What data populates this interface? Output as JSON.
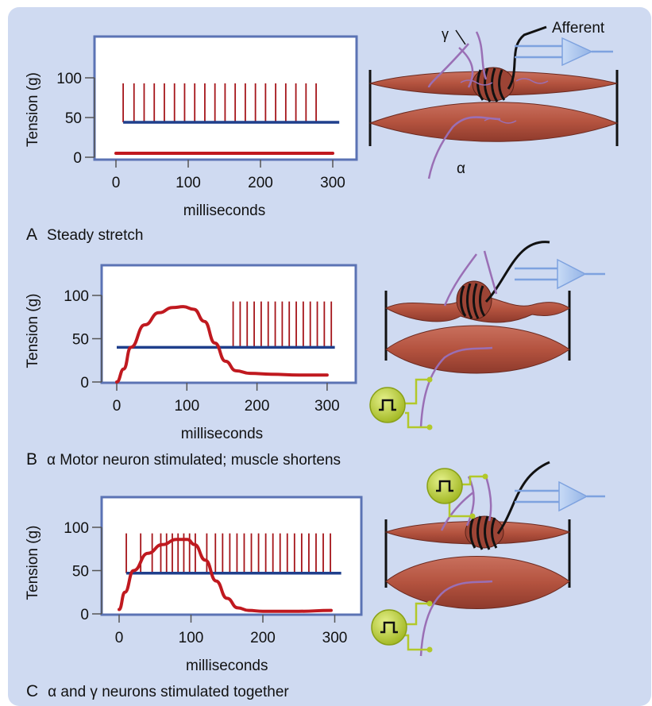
{
  "colors": {
    "background": "#cfdaf1",
    "plot_border": "#5b73b4",
    "tension_trace": "#c0191f",
    "spike": "#a5151a",
    "baseline": "#1f3f8c",
    "muscle": "#b7594a",
    "gamma_fiber": "#9a6fb5",
    "stimulator": "#b2c82a",
    "amplifier": "#a9c4ee"
  },
  "labels": {
    "gamma": "γ",
    "alpha": "α",
    "afferent": "Afferent",
    "ylabel": "Tension (g)",
    "xlabel": "milliseconds"
  },
  "captions": [
    {
      "letter": "A",
      "text": "Steady stretch"
    },
    {
      "letter": "B",
      "text": "α Motor neuron stimulated; muscle shortens"
    },
    {
      "letter": "C",
      "text": "α and γ neurons stimulated together"
    }
  ],
  "chart_data": [
    {
      "type": "line",
      "panel": "A",
      "xlabel": "milliseconds",
      "ylabel": "Tension (g)",
      "x_ticks": [
        0,
        100,
        200,
        300
      ],
      "y_ticks": [
        0,
        50,
        100
      ],
      "tension": {
        "x": [
          0,
          300
        ],
        "y": [
          5,
          5
        ]
      },
      "afferent_spikes_ms": [
        10,
        25,
        39,
        53,
        67,
        81,
        95,
        109,
        123,
        137,
        151,
        165,
        179,
        193,
        207,
        221,
        235,
        249,
        263,
        277
      ]
    },
    {
      "type": "line",
      "panel": "B",
      "xlabel": "milliseconds",
      "ylabel": "Tension (g)",
      "x_ticks": [
        0,
        100,
        200,
        300
      ],
      "y_ticks": [
        0,
        50,
        100
      ],
      "tension": {
        "x": [
          0,
          10,
          20,
          40,
          60,
          80,
          95,
          110,
          125,
          140,
          155,
          170,
          190,
          220,
          260,
          300
        ],
        "y": [
          0,
          15,
          40,
          66,
          80,
          86,
          87,
          84,
          70,
          45,
          24,
          13,
          10,
          9,
          8,
          8
        ]
      },
      "afferent_spikes_ms": [
        166,
        176,
        186,
        196,
        206,
        216,
        226,
        236,
        246,
        256,
        266,
        276,
        286,
        296,
        306
      ]
    },
    {
      "type": "line",
      "panel": "C",
      "xlabel": "milliseconds",
      "ylabel": "Tension (g)",
      "x_ticks": [
        0,
        100,
        200,
        300
      ],
      "y_ticks": [
        0,
        50,
        100
      ],
      "tension": {
        "x": [
          0,
          8,
          20,
          40,
          60,
          80,
          95,
          105,
          120,
          135,
          150,
          165,
          180,
          200,
          250,
          295
        ],
        "y": [
          5,
          25,
          50,
          70,
          80,
          86,
          86,
          80,
          62,
          38,
          18,
          7,
          4,
          3,
          3,
          4
        ]
      },
      "afferent_spikes_ms": [
        10,
        30,
        46,
        58,
        66,
        74,
        82,
        90,
        98,
        106,
        122,
        134,
        144,
        154,
        164,
        174,
        184,
        194,
        204,
        214,
        224,
        234,
        244,
        254,
        264,
        274,
        284,
        294
      ]
    }
  ]
}
